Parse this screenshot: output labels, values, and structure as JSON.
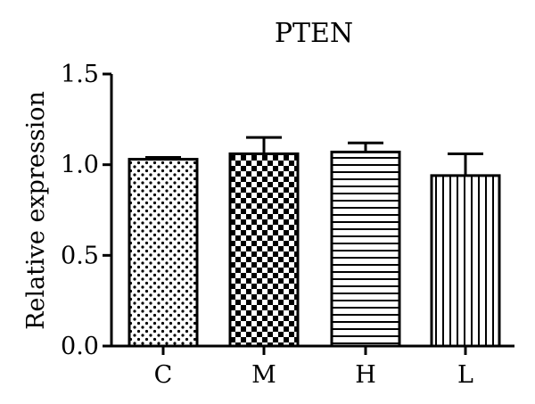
{
  "chart_data": {
    "type": "bar",
    "title": "PTEN",
    "xlabel": "",
    "ylabel": "Relative expression",
    "ylim": [
      0,
      1.5
    ],
    "yticks": [
      "0.0",
      "0.5",
      "1.0",
      "1.5"
    ],
    "categories": [
      "C",
      "M",
      "H",
      "L"
    ],
    "values": [
      1.03,
      1.06,
      1.07,
      0.94
    ],
    "errors": [
      0.01,
      0.09,
      0.05,
      0.12
    ],
    "patterns": [
      "dots",
      "checker",
      "horizontal-lines",
      "vertical-lines"
    ]
  }
}
